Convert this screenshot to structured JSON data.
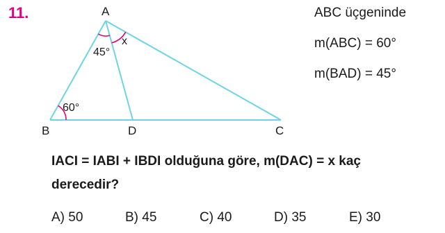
{
  "question": {
    "number": "11.",
    "given_line1": "ABC üçgeninde",
    "given_line2": "m(ABC) = 60°",
    "given_line3": "m(BAD) = 45°",
    "prompt_line1": "IACI = IABI + IBDI  olduğuna göre,  m(DAC) = x  kaç",
    "prompt_line2": "derecedir?"
  },
  "figure": {
    "vertex_a": "A",
    "vertex_b": "B",
    "vertex_c": "C",
    "vertex_d": "D",
    "angle_bad": "45°",
    "angle_dac": "x",
    "angle_abc": "60°"
  },
  "options": [
    {
      "label": "A) 50"
    },
    {
      "label": "B) 45"
    },
    {
      "label": "C) 40"
    },
    {
      "label": "D) 35"
    },
    {
      "label": "E) 30"
    }
  ],
  "colors": {
    "question_number": "#e6007e",
    "triangle_lines": "#6fd3e6",
    "angle_arcs": "#e6007e"
  }
}
